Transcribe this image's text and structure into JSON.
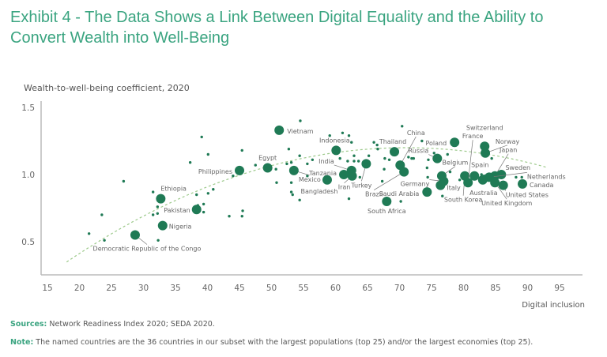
{
  "title": "Exhibit 4 - The Data Shows a Link Between Digital Equality and the Ability to Convert Wealth into Well-Being",
  "footer": {
    "sources_label": "Sources:",
    "sources_text": " Network Readiness Index 2020; SEDA 2020.",
    "note_label": "Note:",
    "note_text": " The named countries are the 36 countries in our subset with the largest populations (top 25) and/or the largest economies (top 25)."
  },
  "colors": {
    "title": "#3aa480",
    "dot": "#1f7a55",
    "trend": "#9cc98a",
    "axis": "#bbbbbb"
  },
  "chart_data": {
    "type": "scatter",
    "xlabel": "Digital inclusion",
    "ylabel": "Wealth-to-well-being coefficient, 2020",
    "xlim": [
      15,
      95
    ],
    "ylim": [
      0.25,
      1.55
    ],
    "xticks": [
      "15",
      "20",
      "25",
      "30",
      "35",
      "40",
      "45",
      "50",
      "55",
      "60",
      "65",
      "70",
      "75",
      "80",
      "85",
      "90",
      "95"
    ],
    "yticks": [
      "0.5",
      "1.0",
      "1.5"
    ],
    "grid": false,
    "trendline": {
      "type": "quadratic",
      "style": "dashed",
      "x_range": [
        18,
        93
      ],
      "vertex": [
        71,
        1.2
      ],
      "a": -0.000303
    },
    "named_countries": [
      {
        "name": "Vietnam",
        "x": 51.2,
        "y": 1.33
      },
      {
        "name": "Indonesia",
        "x": 60.1,
        "y": 1.18
      },
      {
        "name": "Egypt",
        "x": 49.4,
        "y": 1.05
      },
      {
        "name": "Philippines",
        "x": 45.0,
        "y": 1.03
      },
      {
        "name": "Mexico",
        "x": 53.5,
        "y": 1.03
      },
      {
        "name": "Bangladesh",
        "x": 58.7,
        "y": 0.96
      },
      {
        "name": "India",
        "x": 62.5,
        "y": 1.03
      },
      {
        "name": "Tanzania",
        "x": 61.3,
        "y": 1.0
      },
      {
        "name": "Iran",
        "x": 62.6,
        "y": 0.99
      },
      {
        "name": "Turkey",
        "x": 64.8,
        "y": 1.08
      },
      {
        "name": "Thailand",
        "x": 69.2,
        "y": 1.17
      },
      {
        "name": "China",
        "x": 70.1,
        "y": 1.07
      },
      {
        "name": "Brazil",
        "x": 70.7,
        "y": 1.02
      },
      {
        "name": "South Africa",
        "x": 68.0,
        "y": 0.8
      },
      {
        "name": "Saudi Arabia",
        "x": 74.3,
        "y": 0.87
      },
      {
        "name": "Russia",
        "x": 75.9,
        "y": 1.12
      },
      {
        "name": "Poland",
        "x": 78.6,
        "y": 1.24
      },
      {
        "name": "Germany",
        "x": 76.9,
        "y": 0.95
      },
      {
        "name": "Belgium",
        "x": 76.6,
        "y": 0.99
      },
      {
        "name": "Italy",
        "x": 76.4,
        "y": 0.92
      },
      {
        "name": "South Korea",
        "x": 80.2,
        "y": 0.99
      },
      {
        "name": "France",
        "x": 80.7,
        "y": 0.94
      },
      {
        "name": "Spain",
        "x": 81.7,
        "y": 0.99
      },
      {
        "name": "Switzerland",
        "x": 83.3,
        "y": 1.21
      },
      {
        "name": "Norway",
        "x": 83.4,
        "y": 1.16
      },
      {
        "name": "Japan",
        "x": 84.9,
        "y": 0.99
      },
      {
        "name": "Sweden",
        "x": 85.9,
        "y": 1.0
      },
      {
        "name": "Netherlands",
        "x": 84.0,
        "y": 0.98
      },
      {
        "name": "Australia",
        "x": 83.0,
        "y": 0.96
      },
      {
        "name": "United Kingdom",
        "x": 84.9,
        "y": 0.94
      },
      {
        "name": "United States",
        "x": 86.2,
        "y": 0.92
      },
      {
        "name": "Canada",
        "x": 89.2,
        "y": 0.93
      },
      {
        "name": "Ethiopia",
        "x": 32.7,
        "y": 0.82
      },
      {
        "name": "Pakistan",
        "x": 38.3,
        "y": 0.74
      },
      {
        "name": "Nigeria",
        "x": 33.0,
        "y": 0.62
      },
      {
        "name": "Democratic Republic of the Congo",
        "x": 28.7,
        "y": 0.55
      }
    ],
    "other_countries": [
      [
        21.5,
        0.56
      ],
      [
        23.5,
        0.7
      ],
      [
        23.9,
        0.51
      ],
      [
        26.9,
        0.95
      ],
      [
        31.5,
        0.87
      ],
      [
        32.2,
        0.76
      ],
      [
        31.5,
        0.7
      ],
      [
        32.2,
        0.71
      ],
      [
        32.3,
        0.51
      ],
      [
        37.3,
        1.09
      ],
      [
        39.1,
        1.28
      ],
      [
        40.1,
        1.15
      ],
      [
        38.3,
        0.85
      ],
      [
        40.1,
        0.86
      ],
      [
        40.9,
        0.89
      ],
      [
        38.5,
        0.77
      ],
      [
        39.4,
        0.78
      ],
      [
        39.4,
        0.72
      ],
      [
        44.0,
        0.99
      ],
      [
        43.4,
        0.69
      ],
      [
        45.4,
        1.18
      ],
      [
        45.4,
        0.69
      ],
      [
        45.5,
        0.73
      ],
      [
        54.5,
        1.4
      ],
      [
        47.5,
        1.07
      ],
      [
        50.7,
        1.04
      ],
      [
        50.8,
        0.94
      ],
      [
        52.7,
        1.19
      ],
      [
        52.4,
        1.08
      ],
      [
        53.1,
        1.09
      ],
      [
        54.4,
        1.14
      ],
      [
        53.1,
        0.94
      ],
      [
        53.1,
        0.87
      ],
      [
        53.3,
        0.85
      ],
      [
        54.4,
        0.81
      ],
      [
        55.6,
        1.08
      ],
      [
        56.4,
        1.11
      ],
      [
        55.6,
        0.99
      ],
      [
        59.1,
        1.29
      ],
      [
        61.1,
        1.31
      ],
      [
        62.1,
        1.29
      ],
      [
        62.5,
        1.24
      ],
      [
        60.7,
        1.12
      ],
      [
        61.9,
        1.1
      ],
      [
        62.9,
        1.14
      ],
      [
        62.9,
        1.1
      ],
      [
        63.6,
        1.1
      ],
      [
        65.2,
        1.14
      ],
      [
        63.8,
        0.98
      ],
      [
        62.1,
        0.82
      ],
      [
        66.0,
        1.24
      ],
      [
        66.5,
        1.22
      ],
      [
        70.4,
        1.36
      ],
      [
        66.6,
        1.19
      ],
      [
        67.7,
        1.12
      ],
      [
        68.4,
        1.11
      ],
      [
        67.6,
        1.04
      ],
      [
        67.3,
        0.95
      ],
      [
        70.2,
        0.8
      ],
      [
        71.4,
        1.13
      ],
      [
        71.9,
        1.12
      ],
      [
        73.5,
        1.25
      ],
      [
        74.3,
        1.05
      ],
      [
        74.4,
        0.98
      ],
      [
        74.5,
        1.11
      ],
      [
        75.4,
        1.16
      ],
      [
        77.5,
        1.15
      ],
      [
        72.2,
        1.12
      ],
      [
        74.6,
        0.85
      ],
      [
        76.7,
        0.84
      ],
      [
        77.9,
        1.02
      ],
      [
        79.4,
        0.96
      ],
      [
        82.8,
        1.0
      ],
      [
        83.2,
        0.99
      ],
      [
        84.4,
        1.12
      ],
      [
        88.2,
        0.98
      ],
      [
        89.1,
        0.98
      ]
    ]
  }
}
